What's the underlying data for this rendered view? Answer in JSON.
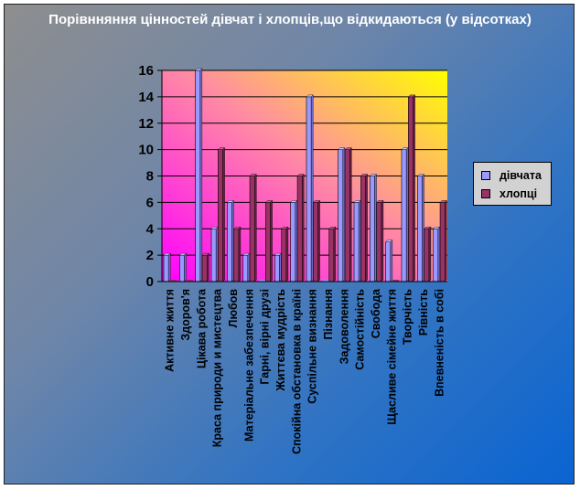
{
  "chart_data": {
    "type": "bar",
    "title": "Порівнняння цінностей дівчат і хлопців,що відкидаються (у відсотках)",
    "categories": [
      "Активне життя",
      "Здоров'я",
      "Цікава робота",
      "Краса природи и мистецтва",
      "Любов",
      "Матеріальне забезпечення",
      "Гарні, вірні друзі",
      "Життєва мудрість",
      "Спокійна обстановка в країні",
      "Суспільне визнання",
      "Пізнання",
      "Задоволення",
      "Самостійність",
      "Свобода",
      "Щасливе сімейне життя",
      "Творчість",
      "Рівність",
      "Впевненість в собі"
    ],
    "series": [
      {
        "name": "дівчата",
        "values": [
          2,
          2,
          16,
          4,
          6,
          2,
          0,
          2,
          6,
          14,
          0,
          10,
          6,
          8,
          3,
          10,
          8,
          4
        ]
      },
      {
        "name": "хлопці",
        "values": [
          0,
          0,
          2,
          10,
          4,
          8,
          6,
          4,
          8,
          6,
          4,
          10,
          8,
          6,
          0,
          14,
          4,
          6
        ]
      }
    ],
    "ylim": [
      0,
      16
    ],
    "yticks": [
      "0",
      "2",
      "4",
      "6",
      "8",
      "10",
      "12",
      "14",
      "16"
    ],
    "grid": true,
    "legend_position": "right",
    "colors": {
      "series_0": "#9999ff",
      "series_1": "#993366",
      "plot_gradient_top": "#ffff00",
      "plot_gradient_bottom_left": "#ff00ff",
      "background_gradient_start": "#8e8e8e",
      "background_gradient_end": "#0a64d2"
    }
  }
}
